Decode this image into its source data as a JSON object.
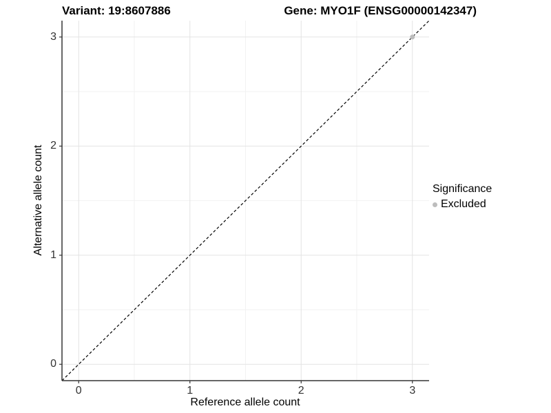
{
  "chart_data": {
    "type": "scatter",
    "title": "Variant: 19:8607886    Gene: MYO1F (ENSG00000142347)",
    "title_segments": [
      "Variant: 19:8607886",
      "Gene: MYO1F (ENSG00000142347)"
    ],
    "xlabel": "Reference allele count",
    "ylabel": "Alternative allele count",
    "xlim": [
      -0.15,
      3.15
    ],
    "ylim": [
      -0.15,
      3.15
    ],
    "x_ticks": [
      0,
      1,
      2,
      3
    ],
    "y_ticks": [
      0,
      1,
      2,
      3
    ],
    "minor_ticks": [
      0.5,
      1.5,
      2.5
    ],
    "grid": "major and minor gridlines, white panel",
    "reference_line": {
      "type": "identity y=x",
      "style": "dashed",
      "color": "#000000",
      "from": [
        -0.15,
        -0.15
      ],
      "to": [
        3.15,
        3.15
      ]
    },
    "series": [
      {
        "name": "Excluded",
        "color": "#bdbdbd",
        "points": [
          [
            3,
            3
          ]
        ]
      }
    ],
    "legend": {
      "position": "right",
      "title": "Significance",
      "entries": [
        {
          "label": "Excluded",
          "color": "#bdbdbd"
        }
      ]
    }
  },
  "colors": {
    "grid_major": "#e3e3e3",
    "grid_minor": "#f2f2f2",
    "axis_line": "#333333",
    "tick_mark": "#333333",
    "point": "#bdbdbd",
    "dashed_line": "#000000",
    "background": "#ffffff"
  }
}
